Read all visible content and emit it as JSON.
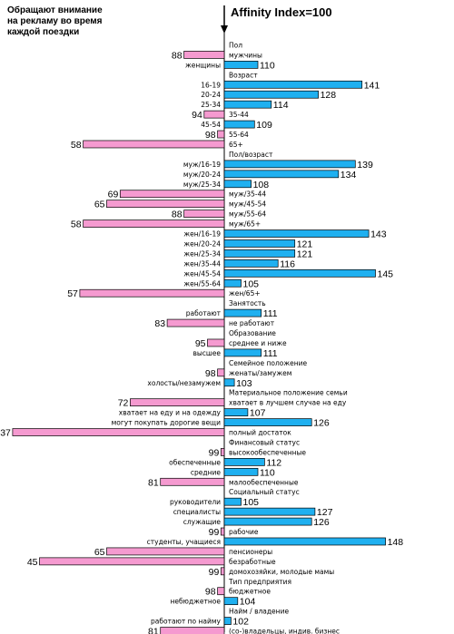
{
  "header": {
    "left_lines": [
      "Обращают внимание",
      "на рекламу во время",
      "каждой поездки"
    ],
    "right_title": "Affinity Index=100"
  },
  "colors": {
    "above": "#1fb0f0",
    "below": "#f59ad0",
    "stroke": "#000000"
  },
  "chart_data": {
    "type": "bar",
    "orientation": "horizontal",
    "baseline": 100,
    "title": "Affinity Index=100",
    "rows": [
      {
        "kind": "header",
        "label": "Пол"
      },
      {
        "kind": "bar",
        "label": "мужчины",
        "value": 88
      },
      {
        "kind": "bar",
        "label": "женщины",
        "value": 110
      },
      {
        "kind": "header",
        "label": "Возраст"
      },
      {
        "kind": "bar",
        "label": "16-19",
        "value": 141
      },
      {
        "kind": "bar",
        "label": "20-24",
        "value": 128
      },
      {
        "kind": "bar",
        "label": "25-34",
        "value": 114
      },
      {
        "kind": "bar",
        "label": "35-44",
        "value": 94
      },
      {
        "kind": "bar",
        "label": "45-54",
        "value": 109
      },
      {
        "kind": "bar",
        "label": "55-64",
        "value": 98
      },
      {
        "kind": "bar",
        "label": "65+",
        "value": 58
      },
      {
        "kind": "header",
        "label": "Пол/возраст"
      },
      {
        "kind": "bar",
        "label": "муж/16-19",
        "value": 139
      },
      {
        "kind": "bar",
        "label": "муж/20-24",
        "value": 134
      },
      {
        "kind": "bar",
        "label": "муж/25-34",
        "value": 108
      },
      {
        "kind": "bar",
        "label": "муж/35-44",
        "value": 69
      },
      {
        "kind": "bar",
        "label": "муж/45-54",
        "value": 65
      },
      {
        "kind": "bar",
        "label": "муж/55-64",
        "value": 88
      },
      {
        "kind": "bar",
        "label": "муж/65+",
        "value": 58
      },
      {
        "kind": "bar",
        "label": "жен/16-19",
        "value": 143
      },
      {
        "kind": "bar",
        "label": "жен/20-24",
        "value": 121
      },
      {
        "kind": "bar",
        "label": "жен/25-34",
        "value": 121
      },
      {
        "kind": "bar",
        "label": "жен/35-44",
        "value": 116
      },
      {
        "kind": "bar",
        "label": "жен/45-54",
        "value": 145
      },
      {
        "kind": "bar",
        "label": "жен/55-64",
        "value": 105
      },
      {
        "kind": "bar",
        "label": "жен/65+",
        "value": 57
      },
      {
        "kind": "header",
        "label": "Занятость"
      },
      {
        "kind": "bar",
        "label": "работают",
        "value": 111
      },
      {
        "kind": "bar",
        "label": "не работают",
        "value": 83
      },
      {
        "kind": "header",
        "label": "Образование"
      },
      {
        "kind": "bar",
        "label": "среднее и ниже",
        "value": 95
      },
      {
        "kind": "bar",
        "label": "высшее",
        "value": 111
      },
      {
        "kind": "header",
        "label": "Семейное положение"
      },
      {
        "kind": "bar",
        "label": "женаты/замужем",
        "value": 98
      },
      {
        "kind": "bar",
        "label": "холосты/незамужем",
        "value": 103
      },
      {
        "kind": "header",
        "label": "Материальное положение семьи"
      },
      {
        "kind": "bar",
        "label": "хватает в лучшем случае на еду",
        "value": 72
      },
      {
        "kind": "bar",
        "label": "хватает на еду и на одежду",
        "value": 107
      },
      {
        "kind": "bar",
        "label": "могут покупать дорогие вещи",
        "value": 126
      },
      {
        "kind": "bar",
        "label": "полный достаток",
        "value": 37
      },
      {
        "kind": "header",
        "label": "Финансовый статус"
      },
      {
        "kind": "bar",
        "label": "высокообеспеченные",
        "value": 99
      },
      {
        "kind": "bar",
        "label": "обеспеченные",
        "value": 112
      },
      {
        "kind": "bar",
        "label": "средние",
        "value": 110
      },
      {
        "kind": "bar",
        "label": "малообеспеченные",
        "value": 81
      },
      {
        "kind": "header",
        "label": "Социальный статус"
      },
      {
        "kind": "bar",
        "label": "руководители",
        "value": 105
      },
      {
        "kind": "bar",
        "label": "специалисты",
        "value": 127
      },
      {
        "kind": "bar",
        "label": "служащие",
        "value": 126
      },
      {
        "kind": "bar",
        "label": "рабочие",
        "value": 99
      },
      {
        "kind": "bar",
        "label": "студенты, учащиеся",
        "value": 148
      },
      {
        "kind": "bar",
        "label": "пенсионеры",
        "value": 65
      },
      {
        "kind": "bar",
        "label": "безработные",
        "value": 45
      },
      {
        "kind": "bar",
        "label": "домохозяйки, молодые мамы",
        "value": 99
      },
      {
        "kind": "header",
        "label": "Тип предприятия"
      },
      {
        "kind": "bar",
        "label": "бюджетное",
        "value": 98
      },
      {
        "kind": "bar",
        "label": "небюджетное",
        "value": 104
      },
      {
        "kind": "header",
        "label": "Найм / владение"
      },
      {
        "kind": "bar",
        "label": "работают по найму",
        "value": 102
      },
      {
        "kind": "bar",
        "label": "(со-)владельцы, индив. бизнес",
        "value": 81
      }
    ]
  }
}
